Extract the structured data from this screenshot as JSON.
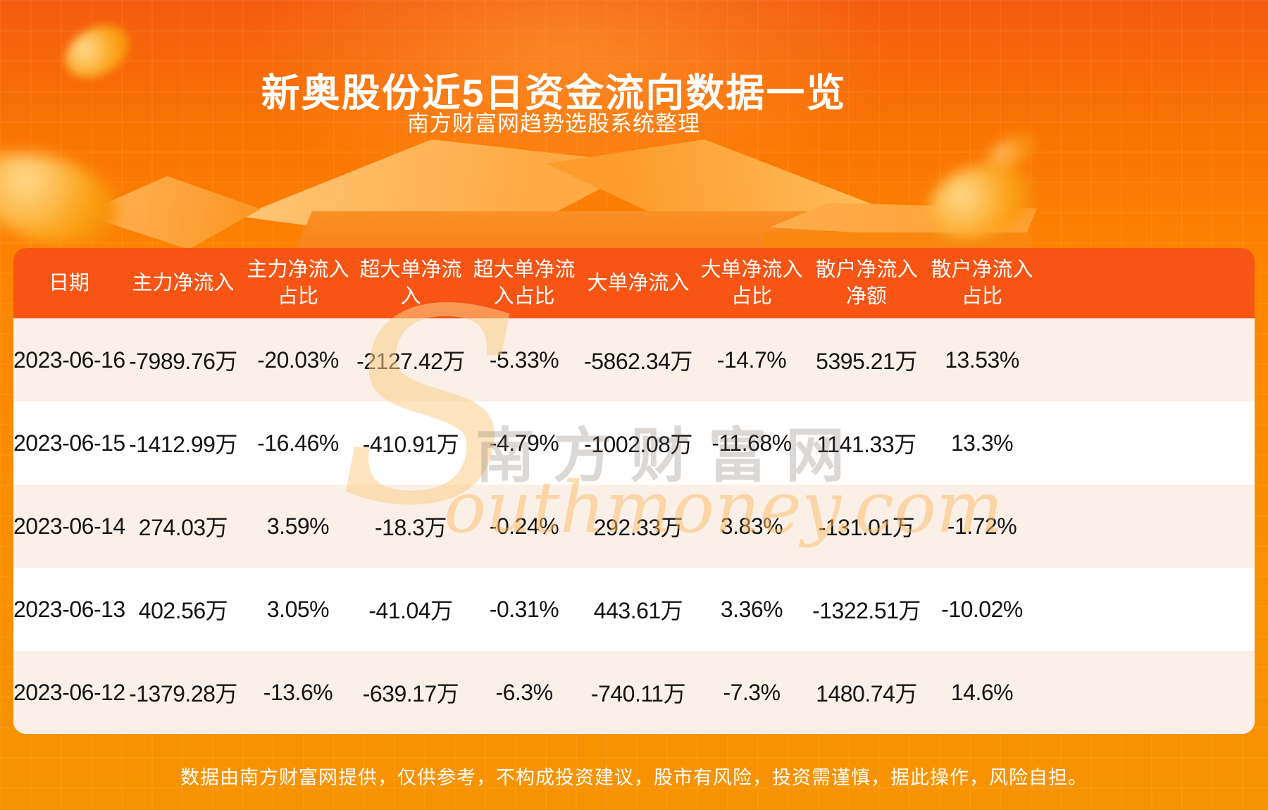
{
  "page": {
    "title": "新奥股份近5日资金流向数据一览",
    "subtitle": "南方财富网趋势选股系统整理",
    "footer": "数据由南方财富网提供，仅供参考，不构成投资建议，股市有风险，投资需谨慎，据此操作，风险自担。"
  },
  "watermark": {
    "initial": "S",
    "cjk": "南方财富网",
    "latin": "outhmoney.com"
  },
  "colors": {
    "background_top": "#f35b0e",
    "background_bottom": "#f79300",
    "table_header_bg": "#f85414",
    "row_alt_bg": "#faf0e7",
    "row_bg": "#ffffff",
    "title_color": "#ffffff",
    "cell_text": "#141414"
  },
  "table": {
    "header_display": [
      "日期",
      "主力净流入",
      "主力净流入\n占比",
      "超大单净流\n入",
      "超大单净流\n入占比",
      "大单净流入",
      "大单净流入\n占比",
      "散户净流入\n净额",
      "散户净流入\n占比"
    ]
  },
  "chart_data": {
    "type": "table",
    "title": "新奥股份近5日资金流向数据一览",
    "subtitle": "南方财富网趋势选股系统整理",
    "columns": [
      "日期",
      "主力净流入",
      "主力净流入占比",
      "超大单净流入",
      "超大单净流入占比",
      "大单净流入",
      "大单净流入占比",
      "散户净流入净额",
      "散户净流入占比"
    ],
    "rows": [
      [
        "2023-06-16",
        "-7989.76万",
        "-20.03%",
        "-2127.42万",
        "-5.33%",
        "-5862.34万",
        "-14.7%",
        "5395.21万",
        "13.53%"
      ],
      [
        "2023-06-15",
        "-1412.99万",
        "-16.46%",
        "-410.91万",
        "-4.79%",
        "-1002.08万",
        "-11.68%",
        "1141.33万",
        "13.3%"
      ],
      [
        "2023-06-14",
        "274.03万",
        "3.59%",
        "-18.3万",
        "-0.24%",
        "292.33万",
        "3.83%",
        "-131.01万",
        "-1.72%"
      ],
      [
        "2023-06-13",
        "402.56万",
        "3.05%",
        "-41.04万",
        "-0.31%",
        "443.61万",
        "3.36%",
        "-1322.51万",
        "-10.02%"
      ],
      [
        "2023-06-12",
        "-1379.28万",
        "-13.6%",
        "-639.17万",
        "-6.3%",
        "-740.11万",
        "-7.3%",
        "1480.74万",
        "14.6%"
      ]
    ]
  }
}
